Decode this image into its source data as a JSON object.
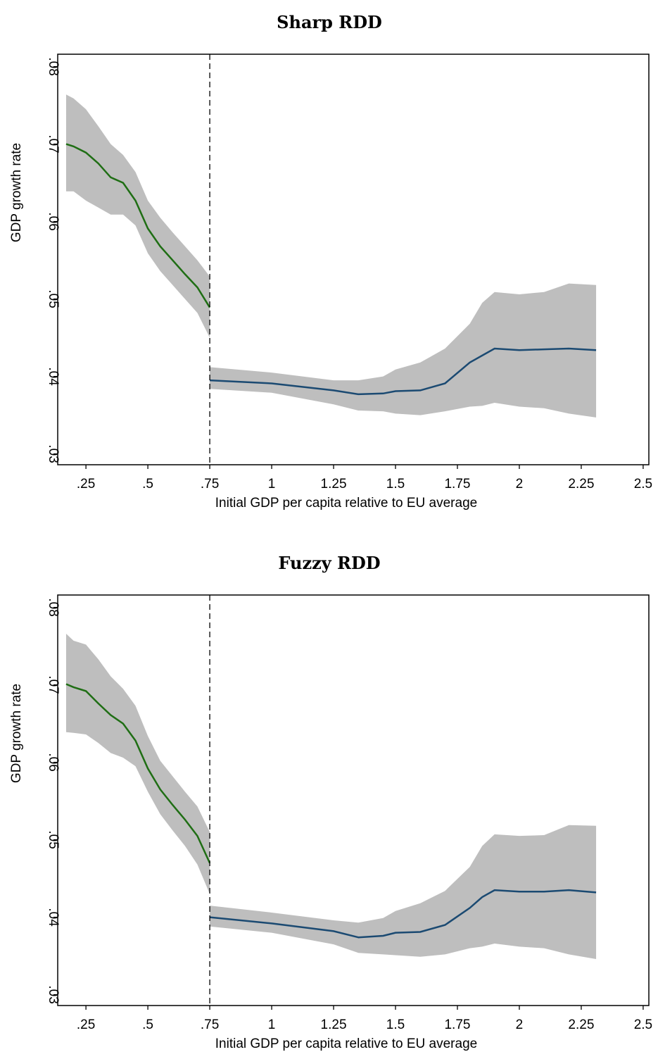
{
  "chart_data": [
    {
      "type": "line",
      "title": "Sharp RDD",
      "xlabel": "Initial GDP per capita relative to EU average",
      "ylabel": "GDP growth rate",
      "xlim": [
        0.136,
        2.523
      ],
      "ylim": [
        0.0286,
        0.0816
      ],
      "xticks": [
        {
          "value": 0.25,
          "label": ".25"
        },
        {
          "value": 0.5,
          "label": ".5"
        },
        {
          "value": 0.75,
          "label": ".75"
        },
        1,
        1.25,
        1.5,
        1.75,
        2,
        2.25,
        2.5
      ],
      "yticks": [
        {
          "value": 0.03,
          "label": ".03"
        },
        {
          "value": 0.04,
          "label": ".04"
        },
        {
          "value": 0.05,
          "label": ".05"
        },
        {
          "value": 0.06,
          "label": ".06"
        },
        {
          "value": 0.07,
          "label": ".07"
        },
        {
          "value": 0.08,
          "label": ".08"
        }
      ],
      "cutoff": 0.75,
      "band_color": "#bebebe",
      "series": [
        {
          "color": "#1f6e14",
          "x": [
            0.17,
            0.2,
            0.25,
            0.3,
            0.35,
            0.4,
            0.45,
            0.5,
            0.55,
            0.6,
            0.65,
            0.7,
            0.75
          ],
          "values": [
            0.07,
            0.0697,
            0.0689,
            0.0675,
            0.0657,
            0.065,
            0.0627,
            0.0591,
            0.0568,
            0.055,
            0.0532,
            0.0515,
            0.0489
          ],
          "upper": [
            0.0764,
            0.0759,
            0.0745,
            0.0723,
            0.07,
            0.0686,
            0.0664,
            0.0627,
            0.0605,
            0.0586,
            0.0568,
            0.055,
            0.0529
          ],
          "lower": [
            0.0639,
            0.0639,
            0.0627,
            0.0618,
            0.0609,
            0.0609,
            0.0595,
            0.0559,
            0.0536,
            0.0518,
            0.05,
            0.0482,
            0.045
          ]
        },
        {
          "color": "#1b4a72",
          "x": [
            0.75,
            1.0,
            1.25,
            1.35,
            1.45,
            1.5,
            1.6,
            1.7,
            1.8,
            1.85,
            1.9,
            2.0,
            2.1,
            2.2,
            2.31
          ],
          "values": [
            0.0395,
            0.0391,
            0.0382,
            0.0377,
            0.0378,
            0.0381,
            0.0382,
            0.0391,
            0.0418,
            0.0427,
            0.0436,
            0.0434,
            0.0435,
            0.0436,
            0.0434
          ],
          "upper": [
            0.0412,
            0.0405,
            0.0395,
            0.0395,
            0.04,
            0.0409,
            0.0418,
            0.0436,
            0.0468,
            0.0495,
            0.0509,
            0.0506,
            0.0509,
            0.052,
            0.0518
          ],
          "lower": [
            0.0384,
            0.0379,
            0.0364,
            0.0356,
            0.0355,
            0.0352,
            0.035,
            0.0355,
            0.0361,
            0.0362,
            0.0366,
            0.0361,
            0.0359,
            0.0352,
            0.0347
          ]
        }
      ]
    },
    {
      "type": "line",
      "title": "Fuzzy RDD",
      "xlabel": "Initial GDP per capita relative to EU average",
      "ylabel": "GDP growth rate",
      "xlim": [
        0.136,
        2.523
      ],
      "ylim": [
        0.0286,
        0.0816
      ],
      "xticks": [
        {
          "value": 0.25,
          "label": ".25"
        },
        {
          "value": 0.5,
          "label": ".5"
        },
        {
          "value": 0.75,
          "label": ".75"
        },
        1,
        1.25,
        1.5,
        1.75,
        2,
        2.25,
        2.5
      ],
      "yticks": [
        {
          "value": 0.03,
          "label": ".03"
        },
        {
          "value": 0.04,
          "label": ".04"
        },
        {
          "value": 0.05,
          "label": ".05"
        },
        {
          "value": 0.06,
          "label": ".06"
        },
        {
          "value": 0.07,
          "label": ".07"
        },
        {
          "value": 0.08,
          "label": ".08"
        }
      ],
      "cutoff": 0.75,
      "band_color": "#bebebe",
      "series": [
        {
          "color": "#1f6e14",
          "x": [
            0.17,
            0.2,
            0.25,
            0.3,
            0.35,
            0.4,
            0.45,
            0.5,
            0.55,
            0.6,
            0.65,
            0.7,
            0.75
          ],
          "values": [
            0.0701,
            0.0697,
            0.0692,
            0.0676,
            0.0661,
            0.065,
            0.0628,
            0.0592,
            0.0565,
            0.0545,
            0.0526,
            0.0505,
            0.047
          ],
          "upper": [
            0.0766,
            0.0757,
            0.0752,
            0.0733,
            0.0711,
            0.0695,
            0.0673,
            0.0634,
            0.0602,
            0.0582,
            0.0562,
            0.0543,
            0.051
          ],
          "lower": [
            0.0639,
            0.0638,
            0.0636,
            0.0625,
            0.0612,
            0.0606,
            0.0595,
            0.0562,
            0.0533,
            0.0512,
            0.0492,
            0.0468,
            0.043
          ]
        },
        {
          "color": "#1b4a72",
          "x": [
            0.75,
            1.0,
            1.25,
            1.35,
            1.45,
            1.5,
            1.6,
            1.7,
            1.8,
            1.85,
            1.9,
            2.0,
            2.1,
            2.2,
            2.31
          ],
          "values": [
            0.04,
            0.0392,
            0.0382,
            0.0374,
            0.0376,
            0.038,
            0.0381,
            0.039,
            0.0412,
            0.0426,
            0.0435,
            0.0433,
            0.0433,
            0.0435,
            0.0432
          ],
          "upper": [
            0.0415,
            0.0406,
            0.0396,
            0.0393,
            0.0399,
            0.0408,
            0.0418,
            0.0434,
            0.0465,
            0.0492,
            0.0507,
            0.0505,
            0.0506,
            0.0519,
            0.0518
          ],
          "lower": [
            0.0388,
            0.038,
            0.0365,
            0.0354,
            0.0352,
            0.0351,
            0.0349,
            0.0352,
            0.036,
            0.0362,
            0.0366,
            0.0362,
            0.036,
            0.0352,
            0.0346
          ]
        }
      ]
    }
  ]
}
